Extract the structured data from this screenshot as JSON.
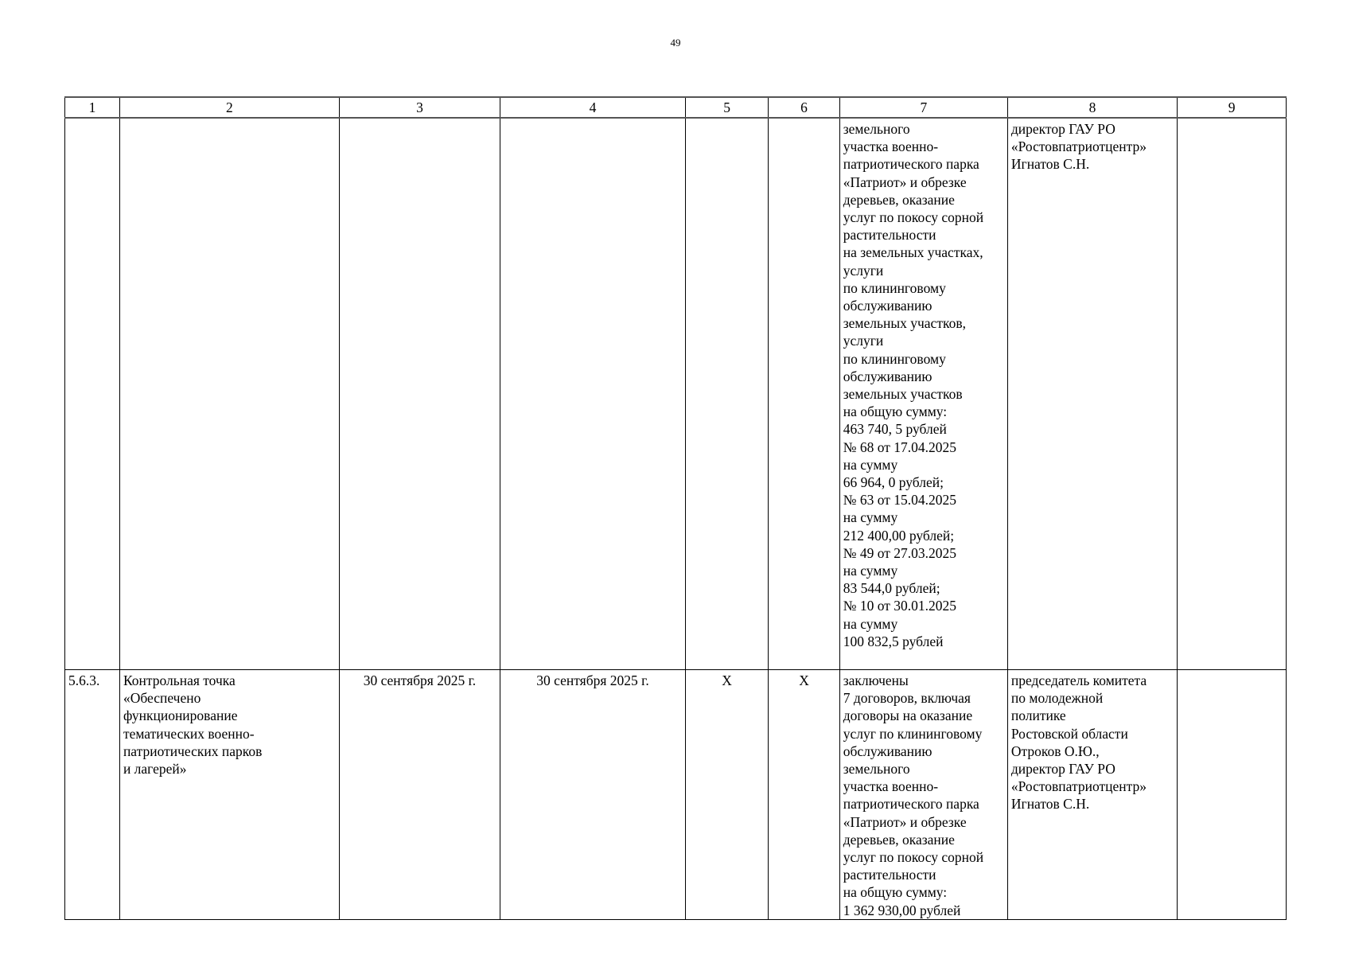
{
  "page_number": "49",
  "columns": [
    "1",
    "2",
    "3",
    "4",
    "5",
    "6",
    "7",
    "8",
    "9"
  ],
  "rows": [
    {
      "c1": "",
      "c2": "",
      "c3": "",
      "c4": "",
      "c5": "",
      "c6": "",
      "c7": "земельного\nучастка военно-\nпатриотического парка\n«Патриот» и обрезке\nдеревьев, оказание\nуслуг по покосу сорной\nрастительности\nна земельных участках,\nуслуги\nпо клининговому\nобслуживанию\nземельных участков,\nуслуги\nпо клининговому\nобслуживанию\nземельных участков\nна общую сумму:\n463 740, 5 рублей\n№ 68 от 17.04.2025\nна сумму\n66 964, 0 рублей;\n№ 63 от 15.04.2025\nна сумму\n212 400,00 рублей;\n№ 49 от 27.03.2025\nна сумму\n83 544,0 рублей;\n№ 10 от 30.01.2025\nна сумму\n100 832,5 рублей",
      "c8": "директор ГАУ РО\n«Ростовпатриотцентр»\nИгнатов С.Н.",
      "c9": ""
    },
    {
      "c1": "5.6.3.",
      "c2": "Контрольная точка\n«Обеспечено\nфункционирование\nтематических военно-\nпатриотических парков\nи лагерей»",
      "c3": "30 сентября 2025 г.",
      "c4": "30 сентября 2025 г.",
      "c5": "X",
      "c6": "X",
      "c7": "заключены\n7 договоров, включая\nдоговоры на оказание\nуслуг по клининговому\nобслуживанию\nземельного\nучастка военно-\nпатриотического парка\n«Патриот» и обрезке\nдеревьев, оказание\nуслуг по покосу сорной\nрастительности\nна общую сумму:\n1 362 930,00 рублей",
      "c8": "председатель комитета\nпо молодежной\nполитике\nРостовской области\nОтроков О.Ю.,\nдиректор ГАУ РО\n«Ростовпатриотцентр»\nИгнатов С.Н.",
      "c9": ""
    }
  ]
}
